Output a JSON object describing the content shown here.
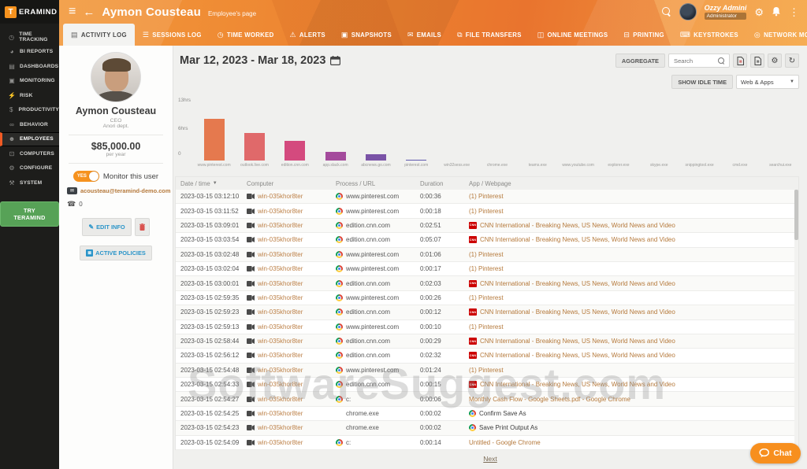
{
  "brand": {
    "logo_letter": "T",
    "logo_name": "ERAMIND"
  },
  "header": {
    "title": "Aymon Cousteau",
    "subtitle": "Employee's page",
    "user": {
      "name": "Ozzy Admini",
      "role": "Administrator"
    }
  },
  "tabs": [
    {
      "label": "ACTIVITY LOG",
      "glyph": "▤",
      "active": true
    },
    {
      "label": "SESSIONS LOG",
      "glyph": "☰"
    },
    {
      "label": "TIME WORKED",
      "glyph": "◷"
    },
    {
      "label": "ALERTS",
      "glyph": "⚠"
    },
    {
      "label": "SNAPSHOTS",
      "glyph": "▣"
    },
    {
      "label": "EMAILS",
      "glyph": "✉"
    },
    {
      "label": "FILE TRANSFERS",
      "glyph": "⧉"
    },
    {
      "label": "ONLINE MEETINGS",
      "glyph": "◫"
    },
    {
      "label": "PRINTING",
      "glyph": "⊟"
    },
    {
      "label": "KEYSTROKES",
      "glyph": "⌨"
    },
    {
      "label": "NETWORK MONITORING",
      "glyph": "◎"
    }
  ],
  "sidebar": {
    "items": [
      {
        "label": "TIME TRACKING",
        "glyph": "◷"
      },
      {
        "label": "BI REPORTS",
        "glyph": "◕"
      },
      {
        "label": "DASHBOARDS",
        "glyph": "▤"
      },
      {
        "label": "MONITORING",
        "glyph": "▣"
      },
      {
        "label": "RISK",
        "glyph": "⚡"
      },
      {
        "label": "PRODUCTIVITY",
        "glyph": "$"
      },
      {
        "label": "BEHAVIOR",
        "glyph": "∞"
      },
      {
        "label": "EMPLOYEES",
        "glyph": "☻",
        "active": true
      },
      {
        "label": "COMPUTERS",
        "glyph": "⊡"
      },
      {
        "label": "CONFIGURE",
        "glyph": "⚙"
      },
      {
        "label": "SYSTEM",
        "glyph": "⚒"
      }
    ],
    "cta_label": "TRY TERAMIND"
  },
  "profile": {
    "name": "Aymon Cousteau",
    "position": "CEO",
    "department": "Anori dept.",
    "salary": "$85,000.00",
    "salary_period": "per year",
    "monitor_toggle": "YES",
    "monitor_label": "Monitor this user",
    "email": "acousteau@teramind-demo.com",
    "phone": "0",
    "edit_button": "EDIT INFO",
    "policies_button": "ACTIVE POLICIES"
  },
  "toolbar": {
    "date_range": "Mar 12, 2023 - Mar 18, 2023",
    "aggregate_label": "AGGREGATE",
    "search_placeholder": "Search",
    "show_idle_label": "SHOW IDLE TIME",
    "filter_value": "Web & Apps"
  },
  "chart_data": {
    "type": "bar",
    "title": "",
    "xlabel": "",
    "ylabel": "hours",
    "ylim": [
      0,
      13
    ],
    "yticks": [
      "13hrs",
      "6hrs",
      "0"
    ],
    "grid": false,
    "legend": "none",
    "categories": [
      "www.pinterest.com",
      "outlook.live.com",
      "edition.cnn.com",
      "app.slack.com",
      "abcnews.go.com",
      "pinterest.com",
      "win32sess.exe",
      "chrome.exe",
      "teams.exe",
      "www.youtube.com",
      "explorer.exe",
      "skype.exe",
      "snippingtool.exe",
      "cmd.exe",
      "searchui.exe"
    ],
    "values": [
      9.6,
      6.3,
      4.5,
      2.0,
      1.4,
      0.25,
      0.08,
      0.06,
      0.05,
      0.05,
      0.04,
      0.04,
      0.03,
      0.03,
      0.03
    ],
    "colors": [
      "#e5794e",
      "#e0696a",
      "#d44a7e",
      "#a44b9c",
      "#7a53a6",
      "#5e58ae",
      "#5560b2",
      "#4f66b4",
      "#4a6cb6",
      "#4672b8",
      "#4278ba",
      "#3f7dbc",
      "#3c82be",
      "#3987c0",
      "#368cc2"
    ]
  },
  "table": {
    "columns": [
      {
        "label": "Date / time",
        "sortable": true
      },
      {
        "label": "Computer"
      },
      {
        "label": "Process / URL"
      },
      {
        "label": "Duration"
      },
      {
        "label": "App / Webpage"
      }
    ],
    "rows": [
      {
        "time": "2023-03-15 03:12:10",
        "computer": "win-035khor8ter",
        "process": "www.pinterest.com",
        "duration": "0:00:36",
        "app": "(1) Pinterest",
        "picon": "chrome",
        "aicon": "",
        "astyle": "link"
      },
      {
        "time": "2023-03-15 03:11:52",
        "computer": "win-035khor8ter",
        "process": "www.pinterest.com",
        "duration": "0:00:18",
        "app": "(1) Pinterest",
        "picon": "chrome",
        "aicon": "",
        "astyle": "link"
      },
      {
        "time": "2023-03-15 03:09:01",
        "computer": "win-035khor8ter",
        "process": "edition.cnn.com",
        "duration": "0:02:51",
        "app": "CNN International - Breaking News, US News, World News and Video",
        "picon": "chrome",
        "aicon": "cnn",
        "astyle": "link"
      },
      {
        "time": "2023-03-15 03:03:54",
        "computer": "win-035khor8ter",
        "process": "edition.cnn.com",
        "duration": "0:05:07",
        "app": "CNN International - Breaking News, US News, World News and Video",
        "picon": "chrome",
        "aicon": "cnn",
        "astyle": "link"
      },
      {
        "time": "2023-03-15 03:02:48",
        "computer": "win-035khor8ter",
        "process": "www.pinterest.com",
        "duration": "0:01:06",
        "app": "(1) Pinterest",
        "picon": "chrome",
        "aicon": "",
        "astyle": "link"
      },
      {
        "time": "2023-03-15 03:02:04",
        "computer": "win-035khor8ter",
        "process": "www.pinterest.com",
        "duration": "0:00:17",
        "app": "(1) Pinterest",
        "picon": "chrome",
        "aicon": "",
        "astyle": "link"
      },
      {
        "time": "2023-03-15 03:00:01",
        "computer": "win-035khor8ter",
        "process": "edition.cnn.com",
        "duration": "0:02:03",
        "app": "CNN International - Breaking News, US News, World News and Video",
        "picon": "chrome",
        "aicon": "cnn",
        "astyle": "link"
      },
      {
        "time": "2023-03-15 02:59:35",
        "computer": "win-035khor8ter",
        "process": "www.pinterest.com",
        "duration": "0:00:26",
        "app": "(1) Pinterest",
        "picon": "chrome",
        "aicon": "",
        "astyle": "link"
      },
      {
        "time": "2023-03-15 02:59:23",
        "computer": "win-035khor8ter",
        "process": "edition.cnn.com",
        "duration": "0:00:12",
        "app": "CNN International - Breaking News, US News, World News and Video",
        "picon": "chrome",
        "aicon": "cnn",
        "astyle": "link"
      },
      {
        "time": "2023-03-15 02:59:13",
        "computer": "win-035khor8ter",
        "process": "www.pinterest.com",
        "duration": "0:00:10",
        "app": "(1) Pinterest",
        "picon": "chrome",
        "aicon": "",
        "astyle": "link"
      },
      {
        "time": "2023-03-15 02:58:44",
        "computer": "win-035khor8ter",
        "process": "edition.cnn.com",
        "duration": "0:00:29",
        "app": "CNN International - Breaking News, US News, World News and Video",
        "picon": "chrome",
        "aicon": "cnn",
        "astyle": "link"
      },
      {
        "time": "2023-03-15 02:56:12",
        "computer": "win-035khor8ter",
        "process": "edition.cnn.com",
        "duration": "0:02:32",
        "app": "CNN International - Breaking News, US News, World News and Video",
        "picon": "chrome",
        "aicon": "cnn",
        "astyle": "link"
      },
      {
        "time": "2023-03-15 02:54:48",
        "computer": "win-035khor8ter",
        "process": "www.pinterest.com",
        "duration": "0:01:24",
        "app": "(1) Pinterest",
        "picon": "chrome",
        "aicon": "",
        "astyle": "link"
      },
      {
        "time": "2023-03-15 02:54:33",
        "computer": "win-035khor8ter",
        "process": "edition.cnn.com",
        "duration": "0:00:15",
        "app": "CNN International - Breaking News, US News, World News and Video",
        "picon": "chrome",
        "aicon": "cnn",
        "astyle": "link"
      },
      {
        "time": "2023-03-15 02:54:27",
        "computer": "win-035khor8ter",
        "process": "c:",
        "duration": "0:00:06",
        "app": "Monthly Cash Flow - Google Sheets.pdf - Google Chrome",
        "picon": "chrome",
        "aicon": "",
        "astyle": "link"
      },
      {
        "time": "2023-03-15 02:54:25",
        "computer": "win-035khor8ter",
        "process": "chrome.exe",
        "duration": "0:00:02",
        "app": "Confirm Save As",
        "picon": "",
        "aicon": "chrome",
        "astyle": "plain"
      },
      {
        "time": "2023-03-15 02:54:23",
        "computer": "win-035khor8ter",
        "process": "chrome.exe",
        "duration": "0:00:02",
        "app": "Save Print Output As",
        "picon": "",
        "aicon": "chrome",
        "astyle": "plain"
      },
      {
        "time": "2023-03-15 02:54:09",
        "computer": "win-035khor8ter",
        "process": "c:",
        "duration": "0:00:14",
        "app": "Untitled - Google Chrome",
        "picon": "chrome",
        "aicon": "",
        "astyle": "link"
      }
    ]
  },
  "pagination": {
    "next_label": "Next"
  },
  "chat": {
    "label": "Chat"
  },
  "watermark": "SoftwareSuggest.com"
}
